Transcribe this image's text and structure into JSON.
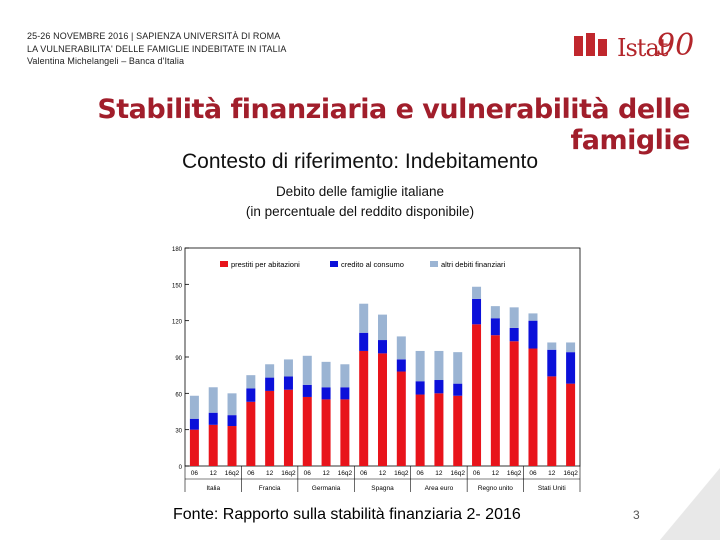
{
  "header": {
    "line1": "25-26 NOVEMBRE 2016 | SAPIENZA UNIVERSITÀ DI ROMA",
    "line2": "LA VULNERABILITA' DELLE FAMIGLIE INDEBITATE IN ITALIA",
    "line3": "Valentina Michelangeli – Banca d'Italia"
  },
  "logo": {
    "text": "Istat",
    "number": "90",
    "brand_color": "#b3262b"
  },
  "slide_title": "Stabilità finanziaria e vulnerabilità delle famiglie",
  "subtitle": "Contesto di riferimento: Indebitamento",
  "caption_line1": "Debito delle famiglie italiane",
  "caption_line2": "(in percentuale del reddito disponibile)",
  "source": "Fonte: Rapporto sulla stabilità finanziaria 2- 2016",
  "page_number": "3",
  "chart_data": {
    "type": "bar",
    "stacked": true,
    "ylim": [
      0,
      180
    ],
    "yticks": [
      "0",
      "30",
      "60",
      "90",
      "120",
      "150",
      "180"
    ],
    "categories": [
      "06",
      "12",
      "16q2",
      "06",
      "12",
      "16q2",
      "06",
      "12",
      "16q2",
      "06",
      "12",
      "16q2",
      "06",
      "12",
      "16q2",
      "06",
      "12",
      "16q2",
      "06",
      "12",
      "16q2"
    ],
    "groups": [
      "Italia",
      "Francia",
      "Germania",
      "Spagna",
      "Area euro",
      "Regno unito",
      "Stati Uniti"
    ],
    "legend_position": "top",
    "series": [
      {
        "name": "prestiti per abitazioni",
        "color": "#e8141b",
        "values": [
          30,
          34,
          33,
          53,
          62,
          63,
          57,
          55,
          55,
          95,
          93,
          78,
          59,
          60,
          58,
          117,
          108,
          103,
          97,
          74,
          68
        ]
      },
      {
        "name": "credito al consumo",
        "color": "#0b10d9",
        "values": [
          9,
          10,
          9,
          11,
          11,
          11,
          10,
          10,
          10,
          15,
          11,
          10,
          11,
          11,
          10,
          21,
          14,
          11,
          23,
          22,
          26
        ]
      },
      {
        "name": "altri debiti finanziari",
        "color": "#9bb4d3",
        "values": [
          19,
          21,
          18,
          11,
          11,
          14,
          24,
          21,
          19,
          24,
          21,
          19,
          25,
          24,
          26,
          10,
          10,
          17,
          6,
          6,
          8
        ]
      }
    ]
  }
}
